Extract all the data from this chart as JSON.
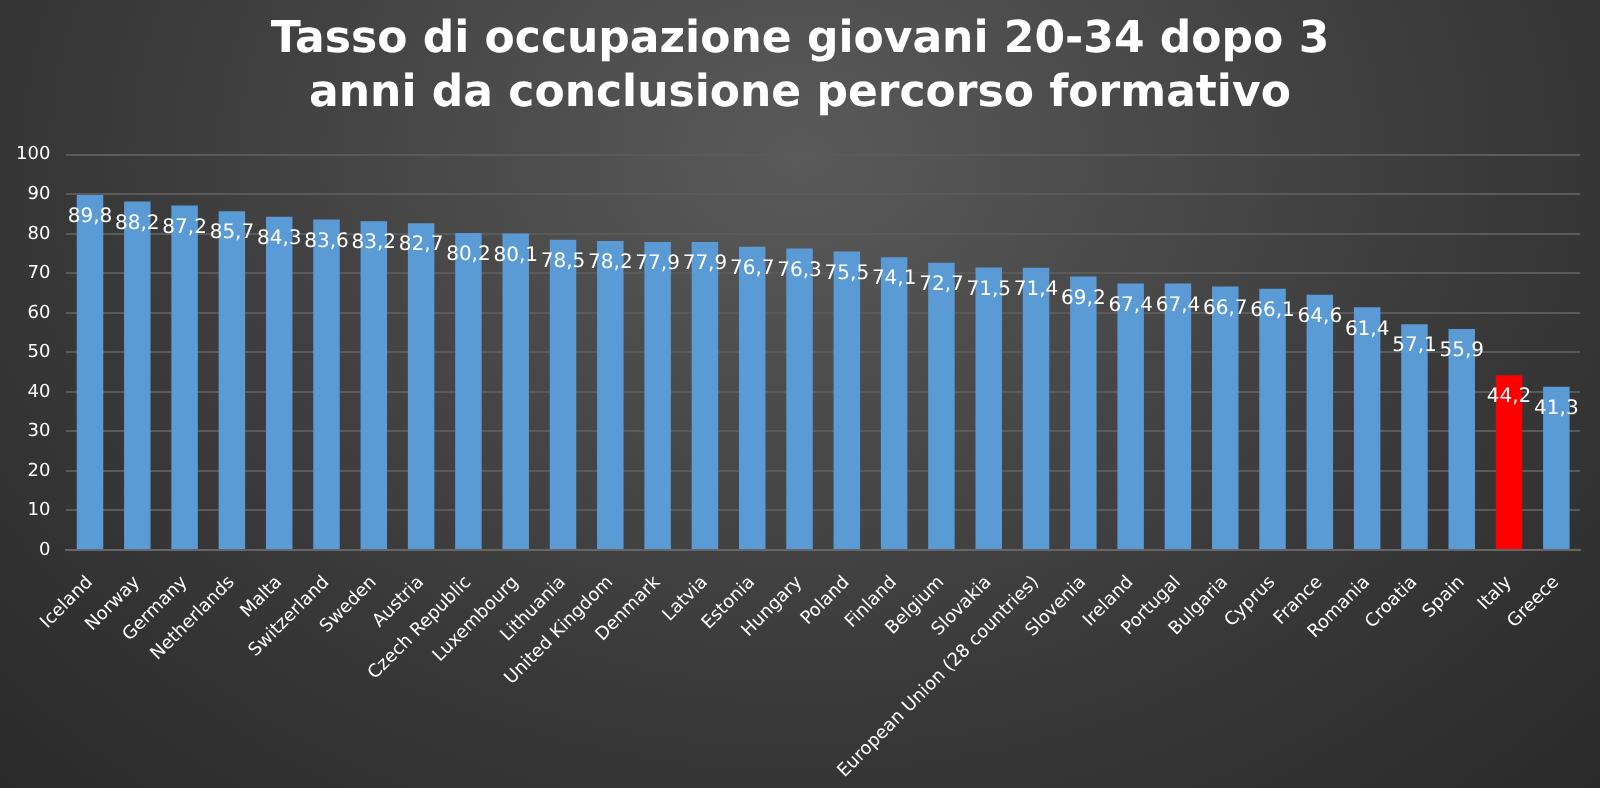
{
  "chart_data": {
    "type": "bar",
    "title": "Tasso di occupazione giovani 20-34 dopo 3 anni da conclusione percorso formativo",
    "categories": [
      "Iceland",
      "Norway",
      "Germany",
      "Netherlands",
      "Malta",
      "Switzerland",
      "Sweden",
      "Austria",
      "Czech Republic",
      "Luxembourg",
      "Lithuania",
      "United Kingdom",
      "Denmark",
      "Latvia",
      "Estonia",
      "Hungary",
      "Poland",
      "Finland",
      "Belgium",
      "Slovakia",
      "European Union (28 countries)",
      "Slovenia",
      "Ireland",
      "Portugal",
      "Bulgaria",
      "Cyprus",
      "France",
      "Romania",
      "Croatia",
      "Spain",
      "Italy",
      "Greece"
    ],
    "values": [
      89.8,
      88.2,
      87.2,
      85.7,
      84.3,
      83.6,
      83.2,
      82.7,
      80.2,
      80.1,
      78.5,
      78.2,
      77.9,
      77.9,
      76.7,
      76.3,
      75.5,
      74.1,
      72.7,
      71.5,
      71.4,
      69.2,
      67.4,
      67.4,
      66.7,
      66.1,
      64.6,
      61.4,
      57.1,
      55.9,
      44.2,
      41.3
    ],
    "value_labels": [
      "89,8",
      "88,2",
      "87,2",
      "85,7",
      "84,3",
      "83,6",
      "83,2",
      "82,7",
      "80,2",
      "80,1",
      "78,5",
      "78,2",
      "77,9",
      "77,9",
      "76,7",
      "76,3",
      "75,5",
      "74,1",
      "72,7",
      "71,5",
      "71,4",
      "69,2",
      "67,4",
      "67,4",
      "66,7",
      "66,1",
      "64,6",
      "61,4",
      "57,1",
      "55,9",
      "44,2",
      "41,3"
    ],
    "colors": [
      "#5b9bd5",
      "#5b9bd5",
      "#5b9bd5",
      "#5b9bd5",
      "#5b9bd5",
      "#5b9bd5",
      "#5b9bd5",
      "#5b9bd5",
      "#5b9bd5",
      "#5b9bd5",
      "#5b9bd5",
      "#5b9bd5",
      "#5b9bd5",
      "#5b9bd5",
      "#5b9bd5",
      "#5b9bd5",
      "#5b9bd5",
      "#5b9bd5",
      "#5b9bd5",
      "#5b9bd5",
      "#5b9bd5",
      "#5b9bd5",
      "#5b9bd5",
      "#5b9bd5",
      "#5b9bd5",
      "#5b9bd5",
      "#5b9bd5",
      "#5b9bd5",
      "#5b9bd5",
      "#5b9bd5",
      "#ff0000",
      "#5b9bd5"
    ],
    "ylim": [
      0,
      100
    ],
    "yticks": [
      0,
      10,
      20,
      30,
      40,
      50,
      60,
      70,
      80,
      90,
      100
    ],
    "grid": "y",
    "legend": false
  }
}
